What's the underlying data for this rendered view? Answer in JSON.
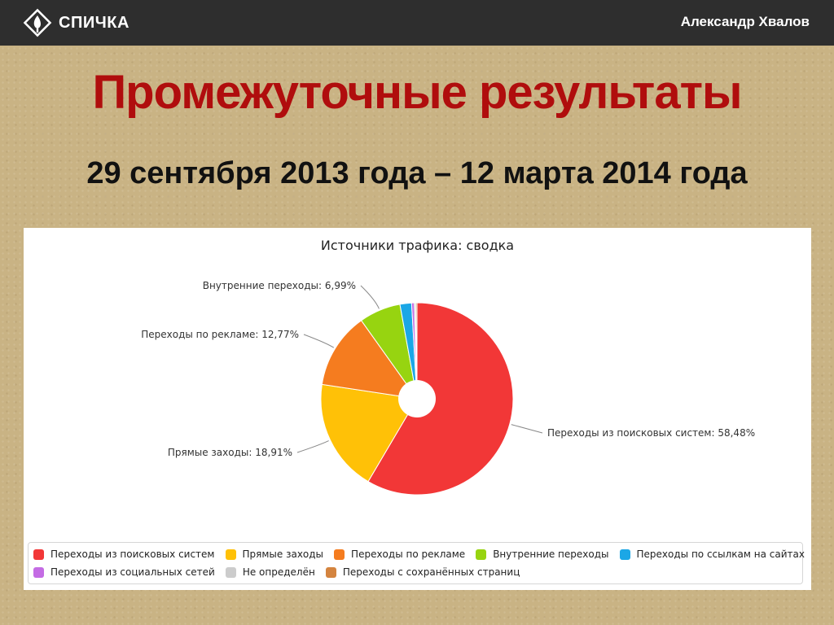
{
  "header": {
    "logo_text": "СПИЧКА",
    "author": "Александр Хвалов"
  },
  "slide": {
    "title": "Промежуточные результаты",
    "subtitle": "29 сентября 2013 года – 12 марта 2014 года"
  },
  "chart_data": {
    "type": "pie",
    "title": "Источники трафика: сводка",
    "donut_hole": true,
    "legend_position": "bottom",
    "slices": [
      {
        "name": "Переходы из поисковых систем",
        "value": 58.48,
        "label": "Переходы из поисковых систем: 58,48%",
        "color": "#f23737"
      },
      {
        "name": "Прямые заходы",
        "value": 18.91,
        "label": "Прямые заходы: 18,91%",
        "color": "#ffc107"
      },
      {
        "name": "Переходы по рекламе",
        "value": 12.77,
        "label": "Переходы по рекламе: 12,77%",
        "color": "#f57c1f"
      },
      {
        "name": "Внутренние переходы",
        "value": 6.99,
        "label": "Внутренние переходы: 6,99%",
        "color": "#97d410"
      },
      {
        "name": "Переходы по ссылкам на сайтах",
        "value": 1.95,
        "label": "",
        "color": "#1ba7e6"
      },
      {
        "name": "Переходы из социальных сетей",
        "value": 0.45,
        "label": "",
        "color": "#c46ce4"
      },
      {
        "name": "Не определён",
        "value": 0.25,
        "label": "",
        "color": "#cccccc"
      },
      {
        "name": "Переходы с сохранённых страниц",
        "value": 0.2,
        "label": "",
        "color": "#d4843f"
      }
    ]
  }
}
